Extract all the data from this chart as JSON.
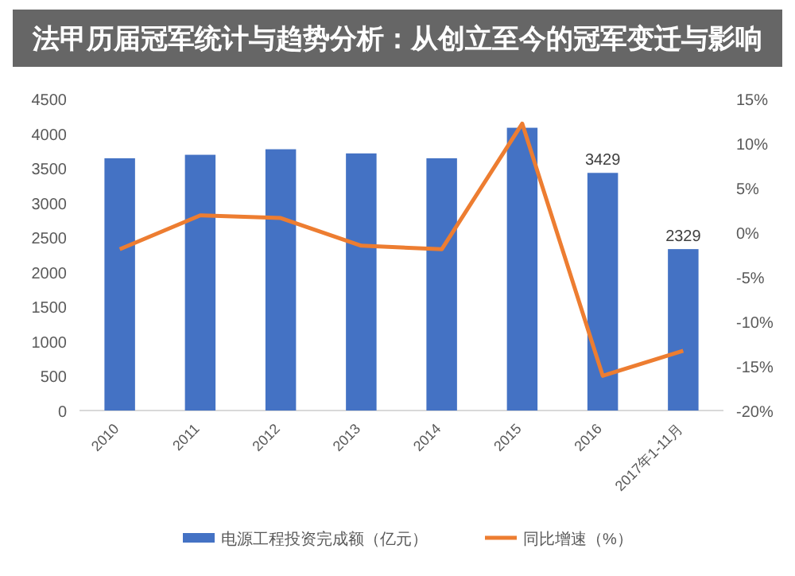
{
  "chart_data": {
    "type": "bar",
    "title": "法甲历届冠军统计与趋势分析：从创立至今的冠军变迁与影响",
    "categories": [
      "2010",
      "2011",
      "2012",
      "2013",
      "2014",
      "2015",
      "2016",
      "2017年1-11月"
    ],
    "series": [
      {
        "name": "电源工程投资完成额（亿元）",
        "color": "#4472c4",
        "values": [
          3640,
          3690,
          3770,
          3710,
          3640,
          4080,
          3429,
          2329
        ],
        "value_labels": [
          null,
          null,
          null,
          null,
          null,
          null,
          "3429",
          "2329"
        ]
      },
      {
        "name": "同比增速（%）",
        "type": "line",
        "axis": "y2",
        "color": "#ed7d31",
        "values": [
          -1.9,
          1.9,
          1.6,
          -1.5,
          -1.9,
          12.2,
          -16.1,
          -13.3
        ]
      }
    ],
    "ylim": [
      0,
      4500
    ],
    "yticks": [
      0,
      500,
      1000,
      1500,
      2000,
      2500,
      3000,
      3500,
      4000,
      4500
    ],
    "y2lim": [
      -20,
      15
    ],
    "y2ticks": [
      {
        "value": -20,
        "label": "-20%"
      },
      {
        "value": -15,
        "label": "-15%"
      },
      {
        "value": -10,
        "label": "-10%"
      },
      {
        "value": -5,
        "label": "-5%"
      },
      {
        "value": 0,
        "label": "0%"
      },
      {
        "value": 5,
        "label": "5%"
      },
      {
        "value": 10,
        "label": "10%"
      },
      {
        "value": 15,
        "label": "15%"
      }
    ],
    "legend": "bottom",
    "grid": false,
    "marker": "none"
  }
}
